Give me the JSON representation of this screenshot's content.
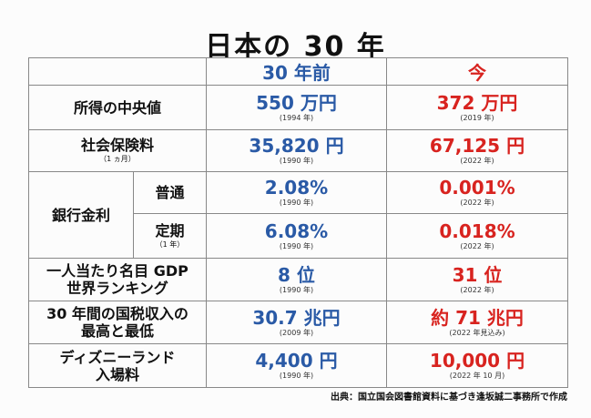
{
  "title": "日本の 30 年",
  "headers": {
    "old": "30 年前",
    "now": "今"
  },
  "rows": [
    {
      "label": "所得の中央値",
      "old_value": "550 万円",
      "old_year": "(1994 年)",
      "now_value": "372 万円",
      "now_year": "(2019 年)"
    },
    {
      "label": "社会保険料",
      "sub": "（1 ヵ月）",
      "old_value": "35,820 円",
      "old_year": "(1990 年)",
      "now_value": "67,125 円",
      "now_year": "(2022 年)"
    },
    {
      "group_label": "銀行金利",
      "label": "普通",
      "old_value": "2.08%",
      "old_year": "(1990 年)",
      "now_value": "0.001%",
      "now_year": "(2022 年)"
    },
    {
      "label": "定期",
      "sub": "（1 年）",
      "old_value": "6.08%",
      "old_year": "(1990 年)",
      "now_value": "0.018%",
      "now_year": "(2022 年)"
    },
    {
      "label_line1": "一人当たり名目 GDP",
      "label_line2": "世界ランキング",
      "old_value": "8 位",
      "old_year": "(1990 年)",
      "now_value": "31 位",
      "now_year": "(2022 年)"
    },
    {
      "label_line1": "30 年間の国税収入の",
      "label_line2": "最高と最低",
      "old_value": "30.7 兆円",
      "old_year": "(2009 年)",
      "now_value": "約 71 兆円",
      "now_year": "(2022 年見込み)"
    },
    {
      "label_line1": "ディズニーランド",
      "label_line2": "入場料",
      "old_value": "4,400 円",
      "old_year": "(1990 年)",
      "now_value": "10,000 円",
      "now_year": "(2022 年 10 月)"
    }
  ],
  "source": "出典：国立国会図書館資料に基づき逢坂誠二事務所で作成",
  "colors": {
    "old": "#2a5aa6",
    "now": "#d8231f"
  }
}
